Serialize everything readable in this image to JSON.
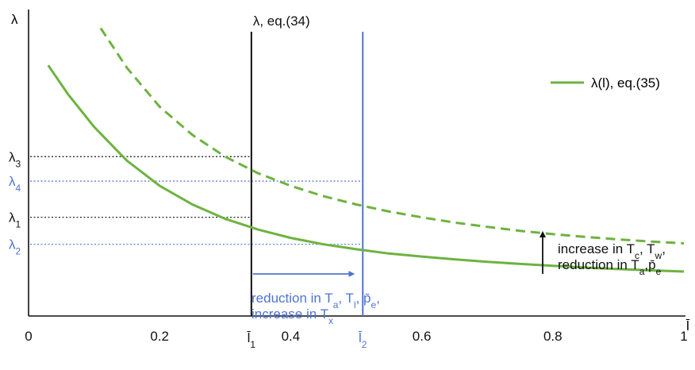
{
  "chart_data": {
    "type": "line",
    "title": "",
    "xlabel": "l̄",
    "ylabel": "λ",
    "xlim": [
      0,
      1
    ],
    "ylim": [
      0,
      1
    ],
    "x_ticks": [
      "0",
      "0.2",
      "0.4",
      "0.6",
      "0.8",
      "1"
    ],
    "x_tick_values": [
      0,
      0.2,
      0.4,
      0.6,
      0.8,
      1
    ],
    "colors": {
      "curve": "#6db33f",
      "blue": "#4f73d3",
      "black": "#111111"
    },
    "series": [
      {
        "name": "λ(l), eq.(35)",
        "style": "solid",
        "x": [
          0.03,
          0.06,
          0.1,
          0.15,
          0.2,
          0.25,
          0.3,
          0.35,
          0.4,
          0.45,
          0.5,
          0.55,
          0.6,
          0.65,
          0.7,
          0.75,
          0.8,
          0.85,
          0.9,
          0.95,
          1.0
        ],
        "y": [
          0.818,
          0.724,
          0.617,
          0.507,
          0.425,
          0.364,
          0.317,
          0.282,
          0.255,
          0.234,
          0.218,
          0.204,
          0.194,
          0.185,
          0.177,
          0.17,
          0.164,
          0.158,
          0.153,
          0.149,
          0.145
        ]
      },
      {
        "name": "",
        "style": "dashed",
        "x": [
          0.11,
          0.15,
          0.2,
          0.25,
          0.3,
          0.35,
          0.4,
          0.45,
          0.5,
          0.55,
          0.6,
          0.65,
          0.7,
          0.75,
          0.8,
          0.85,
          0.9,
          0.95,
          1.0
        ],
        "y": [
          0.939,
          0.81,
          0.683,
          0.591,
          0.52,
          0.466,
          0.425,
          0.391,
          0.364,
          0.341,
          0.322,
          0.305,
          0.291,
          0.278,
          0.267,
          0.258,
          0.25,
          0.243,
          0.237
        ]
      }
    ],
    "vertical_lines": [
      {
        "label": "λ, eq.(34)",
        "x": 0.34,
        "color": "black",
        "tick_base": "l̄",
        "tick_sub": "1"
      },
      {
        "label": "",
        "x": 0.51,
        "color": "blue",
        "tick_base": "l̄",
        "tick_sub": "2"
      }
    ],
    "y_levels": [
      {
        "base": "λ",
        "sub": "3",
        "y": 0.52,
        "color": "black"
      },
      {
        "base": "λ",
        "sub": "4",
        "y": 0.44,
        "color": "blue"
      },
      {
        "base": "λ",
        "sub": "1",
        "y": 0.322,
        "color": "black"
      },
      {
        "base": "λ",
        "sub": "2",
        "y": 0.234,
        "color": "blue"
      }
    ],
    "legend": {
      "label": "λ(l), eq.(35)",
      "position": "top-right"
    },
    "annotations": {
      "blue_arrow_line1": [
        {
          "t": "reduction in T",
          "sub": ""
        },
        {
          "t": "",
          "sub": "a"
        },
        {
          "t": ", T",
          "sub": ""
        },
        {
          "t": "",
          "sub": "l"
        },
        {
          "t": ", p̄",
          "sub": ""
        },
        {
          "t": "",
          "sub": "e"
        },
        {
          "t": ",",
          "sub": ""
        }
      ],
      "blue_arrow_line2": [
        {
          "t": "increase in T",
          "sub": ""
        },
        {
          "t": "",
          "sub": "x"
        }
      ],
      "black_arrow_line1": [
        {
          "t": "increase in T",
          "sub": ""
        },
        {
          "t": "",
          "sub": "c"
        },
        {
          "t": ", T",
          "sub": ""
        },
        {
          "t": "",
          "sub": "w"
        },
        {
          "t": ",",
          "sub": ""
        }
      ],
      "black_arrow_line2": [
        {
          "t": "reduction in T",
          "sub": ""
        },
        {
          "t": "",
          "sub": "a"
        },
        {
          "t": ",p̄",
          "sub": ""
        },
        {
          "t": "",
          "sub": "e"
        }
      ]
    }
  }
}
